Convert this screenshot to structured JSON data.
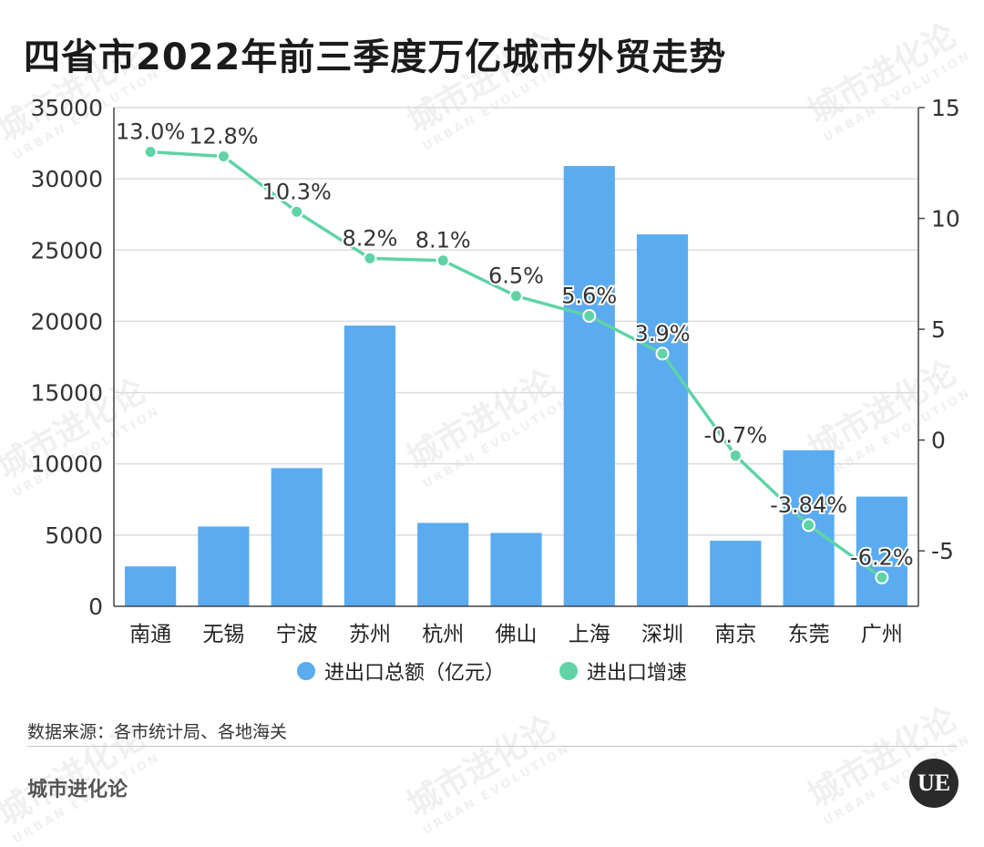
{
  "title": "四省市2022年前三季度万亿城市外贸走势",
  "legend": {
    "bar_label": "进出口总额（亿元）",
    "line_label": "进出口增速"
  },
  "source": "数据来源：各市统计局、各地海关",
  "brand": "城市进化论",
  "logo_text": "UE",
  "watermark": {
    "main": "城市进化论",
    "sub": "URBAN EVOLUTION"
  },
  "colors": {
    "bar": "#5aabf0",
    "line": "#5fd3a6",
    "grid": "#dcdcdc"
  },
  "chart_data": {
    "type": "bar",
    "categories": [
      "南通",
      "无锡",
      "宁波",
      "苏州",
      "杭州",
      "佛山",
      "上海",
      "深圳",
      "南京",
      "东莞",
      "广州"
    ],
    "series": [
      {
        "name": "进出口总额（亿元）",
        "type": "bar",
        "axis": "left",
        "values": [
          2800,
          5600,
          9700,
          19700,
          5850,
          5150,
          30900,
          26100,
          4600,
          10950,
          7700
        ]
      },
      {
        "name": "进出口增速",
        "type": "line",
        "axis": "right",
        "values": [
          13.0,
          12.8,
          10.3,
          8.2,
          8.1,
          6.5,
          5.6,
          3.9,
          -0.7,
          -3.84,
          -6.2
        ],
        "labels": [
          "13.0%",
          "12.8%",
          "10.3%",
          "8.2%",
          "8.1%",
          "6.5%",
          "5.6%",
          "3.9%",
          "-0.7%",
          "-3.84%",
          "-6.2%"
        ]
      }
    ],
    "y_left": {
      "lim": [
        0,
        35000
      ],
      "ticks": [
        "0",
        "5000",
        "10000",
        "15000",
        "20000",
        "25000",
        "30000",
        "35000"
      ]
    },
    "y_right": {
      "lim": [
        -7.5,
        15
      ],
      "ticks": [
        "-5",
        "0",
        "5",
        "10",
        "15"
      ]
    },
    "grid": true,
    "legend_position": "bottom"
  }
}
